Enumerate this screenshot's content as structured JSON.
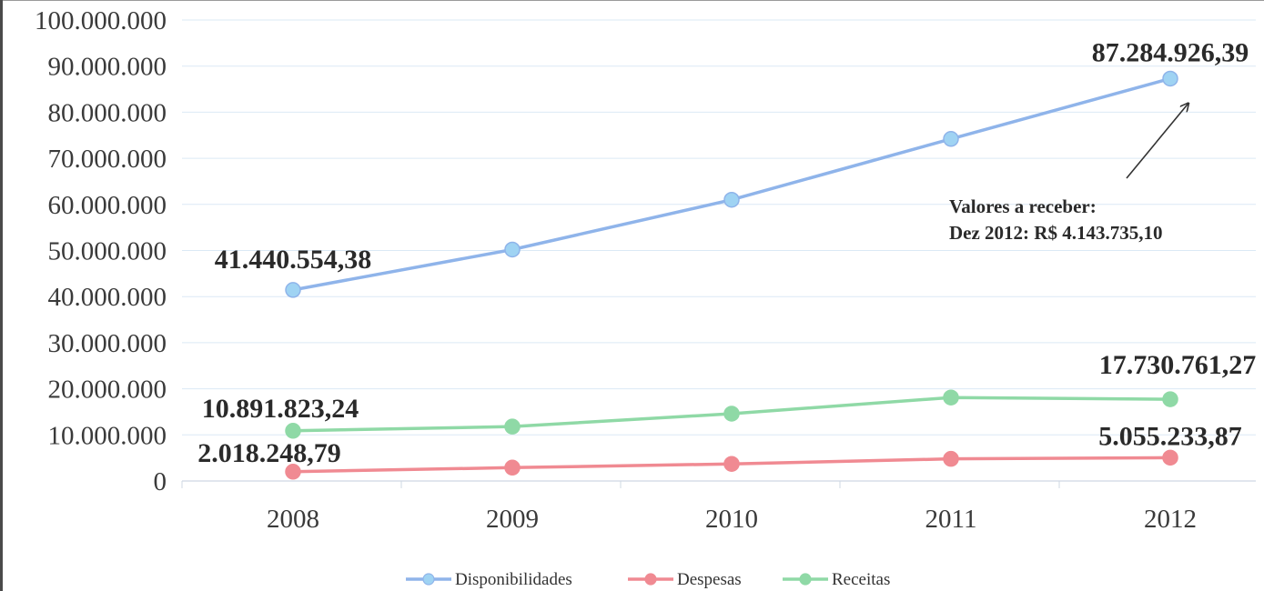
{
  "chart_data": {
    "type": "line",
    "categories": [
      "2008",
      "2009",
      "2010",
      "2011",
      "2012"
    ],
    "ylim": [
      0,
      100000000
    ],
    "y_ticks": [
      0,
      10000000,
      20000000,
      30000000,
      40000000,
      50000000,
      60000000,
      70000000,
      80000000,
      90000000,
      100000000
    ],
    "y_tick_labels": [
      "0",
      "10.000.000",
      "20.000.000",
      "30.000.000",
      "40.000.000",
      "50.000.000",
      "60.000.000",
      "70.000.000",
      "80.000.000",
      "90.000.000",
      "100.000.000"
    ],
    "grid": true,
    "legend_position": "bottom",
    "series": [
      {
        "name": "Disponibilidades",
        "color": "#8fb4ea",
        "marker_color": "#9fd3f3",
        "values": [
          41440554.38,
          50200000,
          61000000,
          74200000,
          87284926.39
        ]
      },
      {
        "name": "Despesas",
        "color": "#f08a92",
        "marker_color": "#f08a92",
        "values": [
          2018248.79,
          2900000,
          3700000,
          4800000,
          5055233.87
        ]
      },
      {
        "name": "Receitas",
        "color": "#8fd9a6",
        "marker_color": "#8fd9a6",
        "values": [
          10891823.24,
          11800000,
          14600000,
          18100000,
          17730761.27
        ]
      }
    ],
    "data_labels": [
      {
        "series": 0,
        "point": 0,
        "text": "41.440.554,38"
      },
      {
        "series": 0,
        "point": 4,
        "text": "87.284.926,39"
      },
      {
        "series": 2,
        "point": 0,
        "text": "10.891.823,24"
      },
      {
        "series": 2,
        "point": 4,
        "text": "17.730.761,27"
      },
      {
        "series": 1,
        "point": 0,
        "text": "2.018.248,79"
      },
      {
        "series": 1,
        "point": 4,
        "text": "5.055.233,87"
      }
    ],
    "annotation": {
      "lines": [
        "Valores a receber:",
        "Dez 2012: R$ 4.143.735,10"
      ],
      "points_to": {
        "series": 0,
        "point": 4
      }
    }
  }
}
